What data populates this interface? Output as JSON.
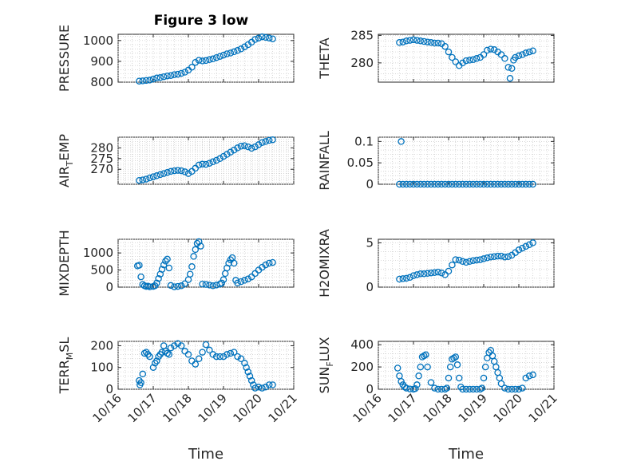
{
  "figure": {
    "title": "Figure 3 low",
    "marker_color": "#0072bd",
    "date_ticks": [
      "10/16",
      "10/17",
      "10/18",
      "10/19",
      "10/20",
      "10/21"
    ],
    "xlabel": "Time"
  },
  "chart_data": [
    {
      "type": "scatter",
      "ylabel": "PRESSURE",
      "xlim": [
        "10/16",
        "10/21"
      ],
      "ylim": [
        800,
        1030
      ],
      "yticks": [
        800,
        900,
        1000
      ],
      "grid": true,
      "x": [
        16.6,
        16.7,
        16.8,
        16.9,
        17.0,
        17.1,
        17.2,
        17.3,
        17.4,
        17.5,
        17.6,
        17.7,
        17.8,
        17.9,
        18.0,
        18.1,
        18.2,
        18.3,
        18.4,
        18.5,
        18.6,
        18.7,
        18.8,
        18.9,
        19.0,
        19.1,
        19.2,
        19.3,
        19.4,
        19.5,
        19.6,
        19.7,
        19.8,
        19.9,
        20.0,
        20.1,
        20.2,
        20.3,
        20.4
      ],
      "y": [
        805,
        806,
        808,
        810,
        815,
        820,
        822,
        826,
        830,
        832,
        836,
        838,
        842,
        848,
        858,
        872,
        895,
        905,
        902,
        904,
        908,
        912,
        918,
        924,
        930,
        936,
        940,
        946,
        952,
        960,
        970,
        980,
        992,
        1005,
        1012,
        1018,
        1015,
        1012,
        1008
      ]
    },
    {
      "type": "scatter",
      "ylabel": "THETA",
      "xlim": [
        "10/16",
        "10/21"
      ],
      "ylim": [
        276.5,
        285.2
      ],
      "yticks": [
        280,
        285
      ],
      "grid": true,
      "x": [
        16.6,
        16.7,
        16.8,
        16.9,
        17.0,
        17.1,
        17.2,
        17.3,
        17.4,
        17.5,
        17.6,
        17.7,
        17.8,
        17.9,
        18.0,
        18.1,
        18.2,
        18.3,
        18.4,
        18.5,
        18.6,
        18.7,
        18.8,
        18.9,
        19.0,
        19.1,
        19.2,
        19.3,
        19.4,
        19.5,
        19.6,
        19.7,
        19.75,
        19.8,
        19.85,
        19.9,
        20.0,
        20.1,
        20.2,
        20.3,
        20.4
      ],
      "y": [
        283.7,
        283.8,
        284.0,
        284.1,
        284.2,
        284.1,
        284.0,
        283.9,
        283.8,
        283.7,
        283.6,
        283.6,
        283.5,
        283.0,
        282.0,
        281.0,
        280.2,
        279.5,
        280.0,
        280.4,
        280.5,
        280.6,
        280.8,
        281.0,
        281.5,
        282.3,
        282.5,
        282.4,
        282.0,
        281.5,
        280.8,
        279.2,
        277.2,
        279.0,
        280.5,
        281.0,
        281.3,
        281.5,
        281.8,
        282.0,
        282.2
      ]
    },
    {
      "type": "scatter",
      "ylabel": "AIR_TEMP",
      "xlim": [
        "10/16",
        "10/21"
      ],
      "ylim": [
        263,
        285
      ],
      "yticks": [
        270,
        275,
        280
      ],
      "grid": true,
      "x": [
        16.6,
        16.7,
        16.8,
        16.9,
        17.0,
        17.1,
        17.2,
        17.3,
        17.4,
        17.5,
        17.6,
        17.7,
        17.8,
        17.9,
        18.0,
        18.1,
        18.2,
        18.3,
        18.4,
        18.5,
        18.6,
        18.7,
        18.8,
        18.9,
        19.0,
        19.1,
        19.2,
        19.3,
        19.4,
        19.5,
        19.6,
        19.7,
        19.8,
        19.9,
        20.0,
        20.1,
        20.2,
        20.3,
        20.4
      ],
      "y": [
        264.8,
        265.0,
        265.4,
        266.0,
        266.5,
        267.0,
        267.5,
        268.0,
        268.5,
        269.0,
        269.3,
        269.5,
        269.3,
        268.8,
        268.0,
        269.0,
        270.5,
        272.0,
        272.4,
        272.3,
        272.8,
        273.5,
        274.2,
        275.0,
        276.0,
        277.0,
        278.0,
        279.0,
        280.0,
        280.8,
        281.0,
        280.5,
        279.8,
        280.5,
        281.5,
        282.5,
        283.0,
        283.5,
        283.8
      ]
    },
    {
      "type": "scatter",
      "ylabel": "RAINFALL",
      "xlim": [
        "10/16",
        "10/21"
      ],
      "ylim": [
        0,
        0.11
      ],
      "yticks": [
        0,
        0.05,
        0.1
      ],
      "grid": true,
      "x": [
        16.6,
        16.65,
        16.7,
        16.8,
        16.9,
        17.0,
        17.1,
        17.2,
        17.3,
        17.4,
        17.5,
        17.6,
        17.7,
        17.8,
        17.9,
        18.0,
        18.1,
        18.2,
        18.3,
        18.4,
        18.5,
        18.6,
        18.7,
        18.8,
        18.9,
        19.0,
        19.1,
        19.2,
        19.3,
        19.4,
        19.5,
        19.6,
        19.7,
        19.8,
        19.9,
        20.0,
        20.1,
        20.2,
        20.3,
        20.4
      ],
      "y": [
        0,
        0.1,
        0,
        0,
        0,
        0,
        0,
        0,
        0,
        0,
        0,
        0,
        0,
        0,
        0,
        0,
        0,
        0,
        0,
        0,
        0,
        0,
        0,
        0,
        0,
        0,
        0,
        0,
        0,
        0,
        0,
        0,
        0,
        0,
        0,
        0,
        0,
        0,
        0,
        0
      ]
    },
    {
      "type": "scatter",
      "ylabel": "MIXDEPTH",
      "xlim": [
        "10/16",
        "10/21"
      ],
      "ylim": [
        0,
        1400
      ],
      "yticks": [
        0,
        500,
        1000
      ],
      "grid": true,
      "x": [
        16.55,
        16.6,
        16.65,
        16.7,
        16.75,
        16.8,
        16.85,
        16.9,
        17.0,
        17.05,
        17.1,
        17.15,
        17.2,
        17.25,
        17.3,
        17.35,
        17.4,
        17.45,
        17.5,
        17.6,
        17.7,
        17.8,
        17.9,
        18.0,
        18.05,
        18.1,
        18.15,
        18.2,
        18.25,
        18.3,
        18.35,
        18.4,
        18.5,
        18.6,
        18.7,
        18.8,
        18.9,
        18.95,
        19.0,
        19.05,
        19.1,
        19.15,
        19.2,
        19.25,
        19.3,
        19.35,
        19.4,
        19.5,
        19.6,
        19.7,
        19.8,
        19.9,
        20.0,
        20.1,
        20.2,
        20.3,
        20.4
      ],
      "y": [
        620,
        640,
        300,
        80,
        40,
        20,
        30,
        10,
        20,
        40,
        120,
        250,
        380,
        520,
        650,
        760,
        820,
        560,
        50,
        10,
        20,
        40,
        100,
        220,
        380,
        600,
        900,
        1100,
        1280,
        1330,
        1200,
        90,
        80,
        60,
        40,
        60,
        90,
        120,
        220,
        400,
        560,
        700,
        800,
        860,
        700,
        200,
        120,
        160,
        200,
        240,
        300,
        400,
        500,
        580,
        650,
        700,
        720
      ]
    },
    {
      "type": "scatter",
      "ylabel": "H2OMIXRA",
      "xlim": [
        "10/16",
        "10/21"
      ],
      "ylim": [
        0,
        5.4
      ],
      "yticks": [
        0,
        5
      ],
      "grid": true,
      "x": [
        16.6,
        16.7,
        16.8,
        16.9,
        17.0,
        17.1,
        17.2,
        17.3,
        17.4,
        17.5,
        17.6,
        17.7,
        17.8,
        17.9,
        18.0,
        18.1,
        18.2,
        18.3,
        18.4,
        18.5,
        18.6,
        18.7,
        18.8,
        18.9,
        19.0,
        19.1,
        19.2,
        19.3,
        19.4,
        19.5,
        19.6,
        19.7,
        19.8,
        19.9,
        20.0,
        20.1,
        20.2,
        20.3,
        20.4
      ],
      "y": [
        0.9,
        0.95,
        1.0,
        1.1,
        1.3,
        1.4,
        1.5,
        1.5,
        1.55,
        1.6,
        1.65,
        1.7,
        1.6,
        1.4,
        1.8,
        2.5,
        3.1,
        3.05,
        2.9,
        2.8,
        2.9,
        3.0,
        3.05,
        3.1,
        3.2,
        3.3,
        3.4,
        3.45,
        3.5,
        3.5,
        3.4,
        3.45,
        3.6,
        3.9,
        4.2,
        4.4,
        4.6,
        4.8,
        5.0
      ]
    },
    {
      "type": "scatter",
      "ylabel": "TERR_MSL",
      "xlim": [
        "10/16",
        "10/21"
      ],
      "ylim": [
        0,
        220
      ],
      "yticks": [
        0,
        100,
        200
      ],
      "grid": true,
      "x": [
        16.6,
        16.62,
        16.65,
        16.7,
        16.75,
        16.8,
        16.85,
        16.9,
        17.0,
        17.05,
        17.1,
        17.15,
        17.2,
        17.25,
        17.3,
        17.35,
        17.4,
        17.45,
        17.5,
        17.6,
        17.7,
        17.8,
        17.9,
        18.0,
        18.1,
        18.2,
        18.3,
        18.4,
        18.5,
        18.6,
        18.7,
        18.8,
        18.9,
        19.0,
        19.1,
        19.2,
        19.3,
        19.4,
        19.5,
        19.6,
        19.65,
        19.7,
        19.75,
        19.8,
        19.85,
        19.9,
        20.0,
        20.1,
        20.2,
        20.3,
        20.4
      ],
      "y": [
        40,
        20,
        30,
        70,
        165,
        170,
        160,
        150,
        100,
        120,
        130,
        150,
        160,
        170,
        200,
        175,
        165,
        160,
        190,
        200,
        210,
        200,
        175,
        160,
        130,
        115,
        140,
        170,
        205,
        180,
        160,
        150,
        150,
        150,
        160,
        165,
        170,
        150,
        140,
        120,
        100,
        80,
        60,
        40,
        20,
        5,
        10,
        5,
        10,
        20,
        20
      ]
    },
    {
      "type": "scatter",
      "ylabel": "SUN_FLUX",
      "xlim": [
        "10/16",
        "10/21"
      ],
      "ylim": [
        0,
        430
      ],
      "yticks": [
        0,
        200,
        400
      ],
      "grid": true,
      "x": [
        16.55,
        16.6,
        16.65,
        16.7,
        16.75,
        16.8,
        16.9,
        17.0,
        17.05,
        17.1,
        17.15,
        17.2,
        17.25,
        17.3,
        17.35,
        17.4,
        17.5,
        17.6,
        17.7,
        17.8,
        17.9,
        17.95,
        18.0,
        18.05,
        18.1,
        18.15,
        18.2,
        18.25,
        18.3,
        18.35,
        18.4,
        18.5,
        18.6,
        18.7,
        18.8,
        18.9,
        18.95,
        19.0,
        19.05,
        19.1,
        19.15,
        19.2,
        19.25,
        19.3,
        19.35,
        19.4,
        19.45,
        19.5,
        19.6,
        19.7,
        19.8,
        19.9,
        20.0,
        20.1,
        20.2,
        20.3,
        20.4
      ],
      "y": [
        190,
        120,
        70,
        40,
        20,
        10,
        2,
        0,
        5,
        40,
        120,
        200,
        290,
        300,
        310,
        200,
        60,
        10,
        0,
        0,
        0,
        10,
        100,
        200,
        270,
        280,
        290,
        220,
        100,
        20,
        0,
        0,
        0,
        0,
        0,
        0,
        10,
        100,
        200,
        280,
        330,
        350,
        300,
        250,
        200,
        150,
        100,
        50,
        10,
        0,
        0,
        0,
        0,
        10,
        100,
        120,
        130
      ]
    }
  ]
}
